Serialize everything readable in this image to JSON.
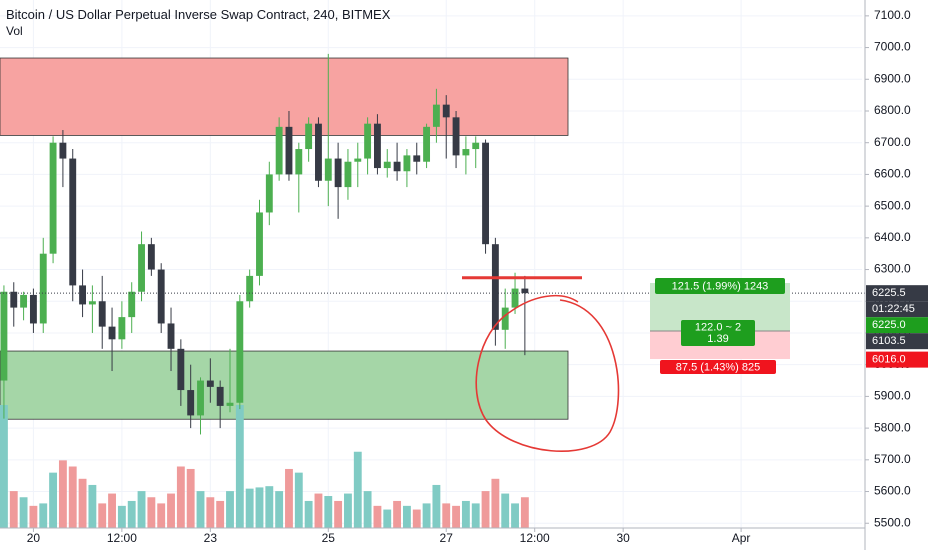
{
  "chart_data": {
    "type": "candlestick",
    "title": "Bitcoin / US Dollar Perpetual Inverse Swap Contract, 240, BITMEX",
    "subtitle": "Vol",
    "open": [
      5950,
      6230,
      6180,
      6220,
      6130,
      6350,
      6700,
      6650,
      6250,
      6190,
      6200,
      6120,
      6080,
      6150,
      6230,
      6380,
      6300,
      6130,
      6050,
      5920,
      5840,
      5950,
      5930,
      5870,
      5880,
      6200,
      6280,
      6480,
      6600,
      6750,
      6600,
      6680,
      6760,
      6580,
      6650,
      6560,
      6640,
      6650,
      6760,
      6620,
      6640,
      6610,
      6660,
      6640,
      6750,
      6820,
      6780,
      6660,
      6680,
      6700,
      6380,
      6110,
      6180,
      6240
    ],
    "high": [
      6250,
      6260,
      6230,
      6240,
      6400,
      6720,
      6740,
      6680,
      6300,
      6250,
      6280,
      6180,
      6200,
      6260,
      6420,
      6400,
      6320,
      6180,
      6080,
      6000,
      5960,
      6020,
      5950,
      6050,
      6220,
      6300,
      6520,
      6640,
      6780,
      6800,
      6700,
      6780,
      6780,
      6980,
      6700,
      6680,
      6700,
      6780,
      6790,
      6680,
      6700,
      6680,
      6700,
      6760,
      6870,
      6850,
      6800,
      6720,
      6720,
      6710,
      6400,
      6240,
      6290,
      6280
    ],
    "low": [
      5830,
      6120,
      6140,
      6100,
      6100,
      6320,
      6560,
      6200,
      6150,
      6100,
      6050,
      5980,
      6050,
      6100,
      6200,
      6280,
      6100,
      5980,
      5870,
      5800,
      5780,
      5880,
      5800,
      5850,
      5860,
      6180,
      6250,
      6440,
      6580,
      6580,
      6480,
      6640,
      6560,
      6500,
      6460,
      6520,
      6560,
      6600,
      6600,
      6590,
      6580,
      6560,
      6600,
      6620,
      6700,
      6650,
      6620,
      6600,
      6620,
      6350,
      6060,
      6050,
      6160,
      6030
    ],
    "close": [
      6230,
      6180,
      6220,
      6130,
      6350,
      6700,
      6650,
      6250,
      6190,
      6200,
      6120,
      6080,
      6150,
      6230,
      6380,
      6300,
      6130,
      6050,
      5920,
      5840,
      5950,
      5930,
      5870,
      5880,
      6200,
      6280,
      6480,
      6600,
      6750,
      6600,
      6680,
      6760,
      6580,
      6650,
      6560,
      6640,
      6650,
      6760,
      6620,
      6640,
      6610,
      6660,
      6640,
      6750,
      6820,
      6780,
      6660,
      6680,
      6700,
      6380,
      6110,
      6180,
      6240,
      6225.5
    ],
    "volume": [
      100,
      30,
      25,
      18,
      20,
      45,
      55,
      50,
      40,
      35,
      20,
      28,
      18,
      22,
      30,
      25,
      20,
      28,
      50,
      48,
      30,
      25,
      22,
      30,
      100,
      32,
      33,
      34,
      30,
      48,
      45,
      22,
      28,
      26,
      22,
      28,
      62,
      30,
      18,
      15,
      22,
      18,
      15,
      20,
      35,
      20,
      18,
      22,
      20,
      30,
      40,
      28,
      20,
      25
    ],
    "volume_lim": [
      0,
      100
    ],
    "up_color": "#4caf50",
    "down_color": "#363a45",
    "volume_up_color": "#80cbc4",
    "volume_down_color": "#ef9a9a",
    "xlim": [
      -0.4,
      87.3
    ],
    "xticks": [
      {
        "value": 3,
        "label": "20"
      },
      {
        "value": 12,
        "label": "12:00"
      },
      {
        "value": 21,
        "label": "23"
      },
      {
        "value": 33,
        "label": "25"
      },
      {
        "value": 45,
        "label": "27"
      },
      {
        "value": 54,
        "label": "12:00"
      },
      {
        "value": 63,
        "label": "30"
      },
      {
        "value": 75,
        "label": "Apr"
      }
    ],
    "ylim": [
      5485,
      7150
    ],
    "yticks": [
      {
        "value": 5500,
        "label": "5500.0"
      },
      {
        "value": 5600,
        "label": "5600.0"
      },
      {
        "value": 5700,
        "label": "5700.0"
      },
      {
        "value": 5800,
        "label": "5800.0"
      },
      {
        "value": 5900,
        "label": "5900.0"
      },
      {
        "value": 6000,
        "label": "6000.0"
      },
      {
        "value": 6100,
        "label": "6100.0"
      },
      {
        "value": 6200,
        "label": "6200.0"
      },
      {
        "value": 6300,
        "label": "6300.0"
      },
      {
        "value": 6400,
        "label": "6400.0"
      },
      {
        "value": 6500,
        "label": "6500.0"
      },
      {
        "value": 6600,
        "label": "6600.0"
      },
      {
        "value": 6700,
        "label": "6700.0"
      },
      {
        "value": 6800,
        "label": "6800.0"
      },
      {
        "value": 6900,
        "label": "6900.0"
      },
      {
        "value": 7000,
        "label": "7000.0"
      },
      {
        "value": 7100,
        "label": "7100.0"
      }
    ],
    "zones": [
      {
        "low": 6723,
        "high": 6967,
        "color": "#f7a3a1"
      },
      {
        "low": 5828,
        "high": 6043,
        "color": "#a5d6a7"
      }
    ],
    "hlines": [
      {
        "value": 6274,
        "color": "#e53935"
      }
    ],
    "price_labels": [
      {
        "value": 6225.5,
        "color": "#363a45"
      },
      {
        "value": 6225,
        "label": "6225.0",
        "color": "#1e9e1e"
      },
      {
        "value": 6103.5,
        "color": "#363a45"
      },
      {
        "value": 6016,
        "label": "6016.0",
        "color": "#f0141e"
      }
    ],
    "countdown": "01:22:45",
    "position": {
      "profit_label": "121.5 (1.99%) 1243",
      "center_label": [
        "122.0 ~ 2",
        "1.39"
      ],
      "loss_label": "87.5 (1.43%) 825"
    }
  }
}
